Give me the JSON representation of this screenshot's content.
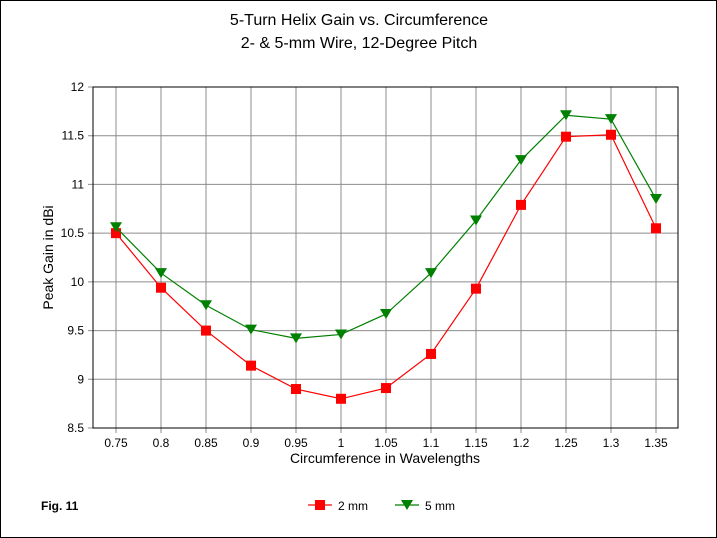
{
  "chart_data": {
    "type": "line",
    "title": [
      "5-Turn Helix Gain vs. Circumference",
      "2- & 5-mm Wire, 12-Degree Pitch"
    ],
    "xlabel": "Circumference in Wavelengths",
    "ylabel": "Peak Gain in dBi",
    "categories": [
      "0.75",
      "0.8",
      "0.85",
      "0.9",
      "0.95",
      "1",
      "1.05",
      "1.1",
      "1.15",
      "1.2",
      "1.25",
      "1.3",
      "1.35"
    ],
    "ylim": [
      8.5,
      12
    ],
    "yticks": [
      "8.5",
      "9",
      "9.5",
      "10",
      "10.5",
      "11",
      "11.5",
      "12"
    ],
    "grid": true,
    "legend_position": "bottom-center",
    "series": [
      {
        "name": "2 mm",
        "color": "#ff0000",
        "marker": "square",
        "values": [
          10.5,
          9.94,
          9.5,
          9.14,
          8.9,
          8.8,
          8.91,
          9.26,
          9.93,
          10.79,
          11.49,
          11.51,
          10.55
        ]
      },
      {
        "name": "5 mm",
        "color": "#008000",
        "marker": "triangle-down",
        "values": [
          10.56,
          10.09,
          9.76,
          9.51,
          9.42,
          9.46,
          9.67,
          10.09,
          10.63,
          11.25,
          11.71,
          11.67,
          10.85
        ]
      }
    ],
    "annotation": "Fig. 11"
  }
}
